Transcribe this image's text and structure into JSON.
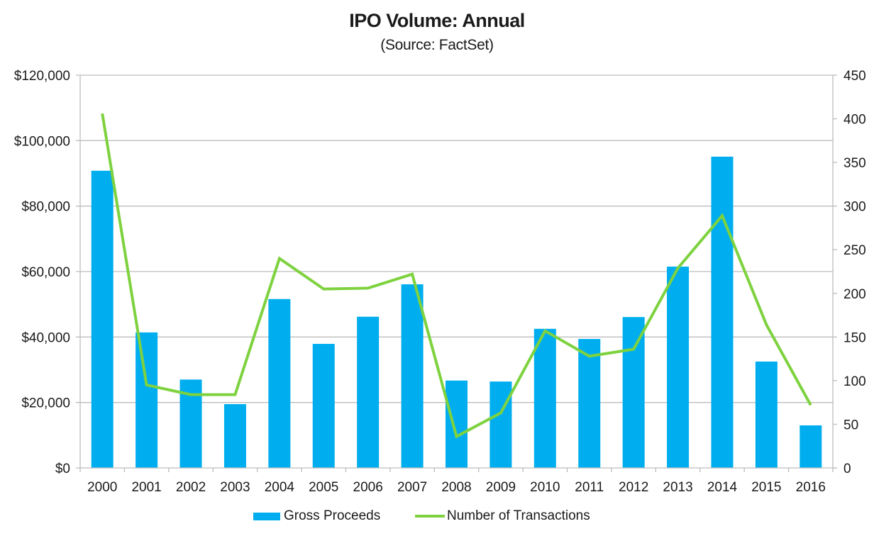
{
  "chart_data": {
    "type": "bar",
    "title": "IPO Volume: Annual",
    "subtitle": "(Source: FactSet)",
    "xlabel": "",
    "ylabel": "",
    "categories": [
      "2000",
      "2001",
      "2002",
      "2003",
      "2004",
      "2005",
      "2006",
      "2007",
      "2008",
      "2009",
      "2010",
      "2011",
      "2012",
      "2013",
      "2014",
      "2015",
      "2016"
    ],
    "series": [
      {
        "name": "Gross Proceeds",
        "type": "bar",
        "axis": "left",
        "color": "#00AEEF",
        "values": [
          90800,
          41400,
          27000,
          19500,
          51600,
          37900,
          46200,
          56100,
          26700,
          26400,
          42500,
          39400,
          46100,
          61500,
          95100,
          32500,
          13000
        ]
      },
      {
        "name": "Number of Transactions",
        "type": "line",
        "axis": "right",
        "color": "#7ED23F",
        "values": [
          406,
          95,
          84,
          84,
          240,
          205,
          206,
          222,
          36,
          63,
          157,
          128,
          136,
          229,
          289,
          164,
          72
        ]
      }
    ],
    "left_axis": {
      "range": [
        0,
        120000
      ],
      "ticks": [
        0,
        20000,
        40000,
        60000,
        80000,
        100000,
        120000
      ],
      "tick_labels": [
        "$0",
        "$20,000",
        "$40,000",
        "$60,000",
        "$80,000",
        "$100,000",
        "$120,000"
      ]
    },
    "right_axis": {
      "range": [
        0,
        450
      ],
      "ticks": [
        0,
        50,
        100,
        150,
        200,
        250,
        300,
        350,
        400,
        450
      ],
      "tick_labels": [
        "0",
        "50",
        "100",
        "150",
        "200",
        "250",
        "300",
        "350",
        "400",
        "450"
      ]
    },
    "grid": true,
    "legend": "bottom-center",
    "gridline_color": "#BDBDBD"
  },
  "legend": {
    "items": [
      {
        "label": "Gross Proceeds",
        "color": "#00AEEF"
      },
      {
        "label": "Number of Transactions",
        "color": "#7ED23F"
      }
    ]
  }
}
